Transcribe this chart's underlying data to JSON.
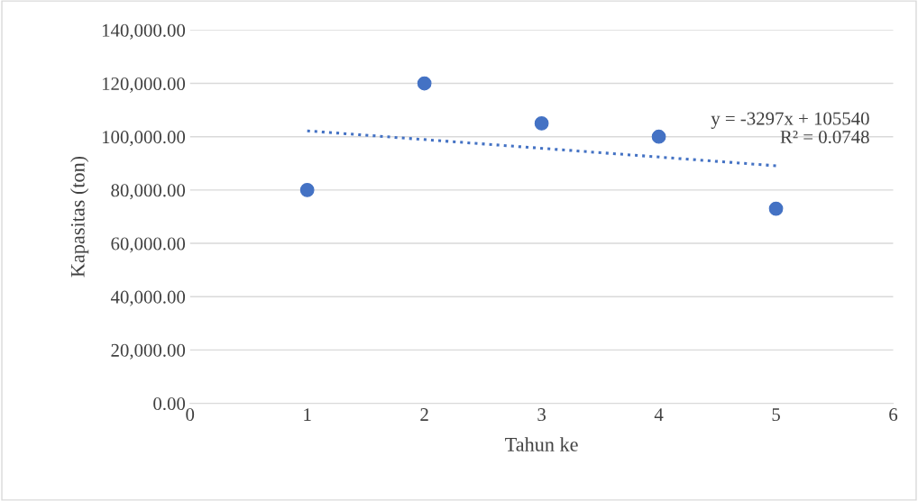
{
  "chart_data": {
    "type": "scatter",
    "xlabel": "Tahun ke",
    "ylabel": "Kapasitas (ton)",
    "x": [
      1,
      2,
      3,
      4,
      5
    ],
    "series": [
      {
        "color": "#4472c4",
        "values": [
          80000,
          120000,
          105000,
          100000,
          73000
        ],
        "marker": "circle"
      },
      {
        "type": "line",
        "color": "#4472c4",
        "x": [
          1,
          5
        ],
        "values": [
          102200,
          89100
        ],
        "line_style": "dotted",
        "marker": "none"
      }
    ],
    "annotations": [
      "y = -3297x + 105540",
      "R² = 0.0748"
    ],
    "xlim": [
      0,
      6
    ],
    "xticks": [
      0,
      1,
      2,
      3,
      4,
      5,
      6
    ],
    "ylim": [
      0,
      140000
    ],
    "yticks": [
      {
        "value": 0,
        "label": "0.00"
      },
      {
        "value": 20000,
        "label": "20,000.00"
      },
      {
        "value": 40000,
        "label": "40,000.00"
      },
      {
        "value": 60000,
        "label": "60,000.00"
      },
      {
        "value": 80000,
        "label": "80,000.00"
      },
      {
        "value": 100000,
        "label": "100,000.00"
      },
      {
        "value": 120000,
        "label": "120,000.00"
      },
      {
        "value": 140000,
        "label": "140,000.00"
      }
    ],
    "grid": "y",
    "legend": false
  }
}
